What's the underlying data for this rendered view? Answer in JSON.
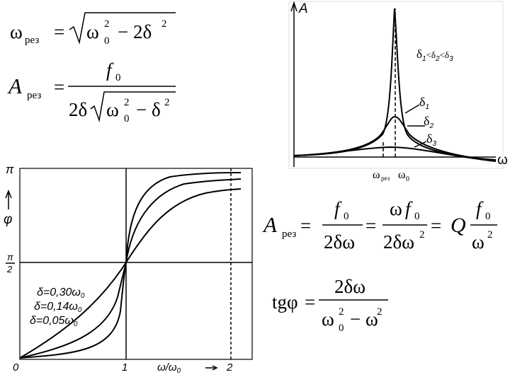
{
  "formula_resonance_frequency": {
    "lhs": "ω",
    "lhs_sub": "рез",
    "eq": "=",
    "a": "ω",
    "a_sub": "0",
    "a_sup": "2",
    "b": "− 2δ",
    "b_sup": "2"
  },
  "formula_resonance_amplitude": {
    "lhs": "A",
    "lhs_sub": "рез",
    "eq": "=",
    "num": "f",
    "num_sub": "0",
    "den_a": "2δ",
    "den_b": "ω",
    "den_b_sub": "0",
    "den_b_sup": "2",
    "den_c": "− δ",
    "den_c_sup": "2"
  },
  "formula_amplitude_quality": {
    "lhs": "A",
    "lhs_sub": "рез",
    "eq1": "=",
    "f1_num": "f",
    "f1_num_sub": "0",
    "f1_den": "2δω",
    "eq2": "=",
    "f2_num_a": "ω",
    "f2_num_b": "f",
    "f2_num_sub": "0",
    "f2_den": "2δω",
    "f2_den_sup": "2",
    "eq3": "=",
    "q": "Q",
    "f3_num": "f",
    "f3_num_sub": "0",
    "f3_den": "ω",
    "f3_den_sup": "2"
  },
  "formula_phase": {
    "lhs": "tgφ",
    "eq": "=",
    "num": "2δω",
    "den_a": "ω",
    "den_a_sub": "0",
    "den_a_sup": "2",
    "den_b": "− ω",
    "den_b_sup": "2"
  },
  "resonance_plot": {
    "y_label": "A",
    "x_label": "ω",
    "omega_res": "ω",
    "omega_res_sub": "рез",
    "omega_0": "ω",
    "omega_0_sub": "0",
    "order_note": [
      "δ",
      "1",
      "<δ",
      "2",
      "<δ",
      "3"
    ],
    "curve_labels": [
      [
        "δ",
        "1"
      ],
      [
        "δ",
        "2"
      ],
      [
        "δ",
        "3"
      ]
    ]
  },
  "phase_plot": {
    "y_label": "φ",
    "y_top": "π",
    "y_mid_num": "π",
    "y_mid_den": "2",
    "x_zero": "0",
    "x_one": "1",
    "x_two": "2",
    "x_label": "ω/ω",
    "x_label_sub": "0",
    "curve_labels": [
      [
        "δ=0,30ω",
        "0"
      ],
      [
        "δ=0,14ω",
        "0"
      ],
      [
        "δ=0,05ω",
        "0"
      ]
    ]
  }
}
